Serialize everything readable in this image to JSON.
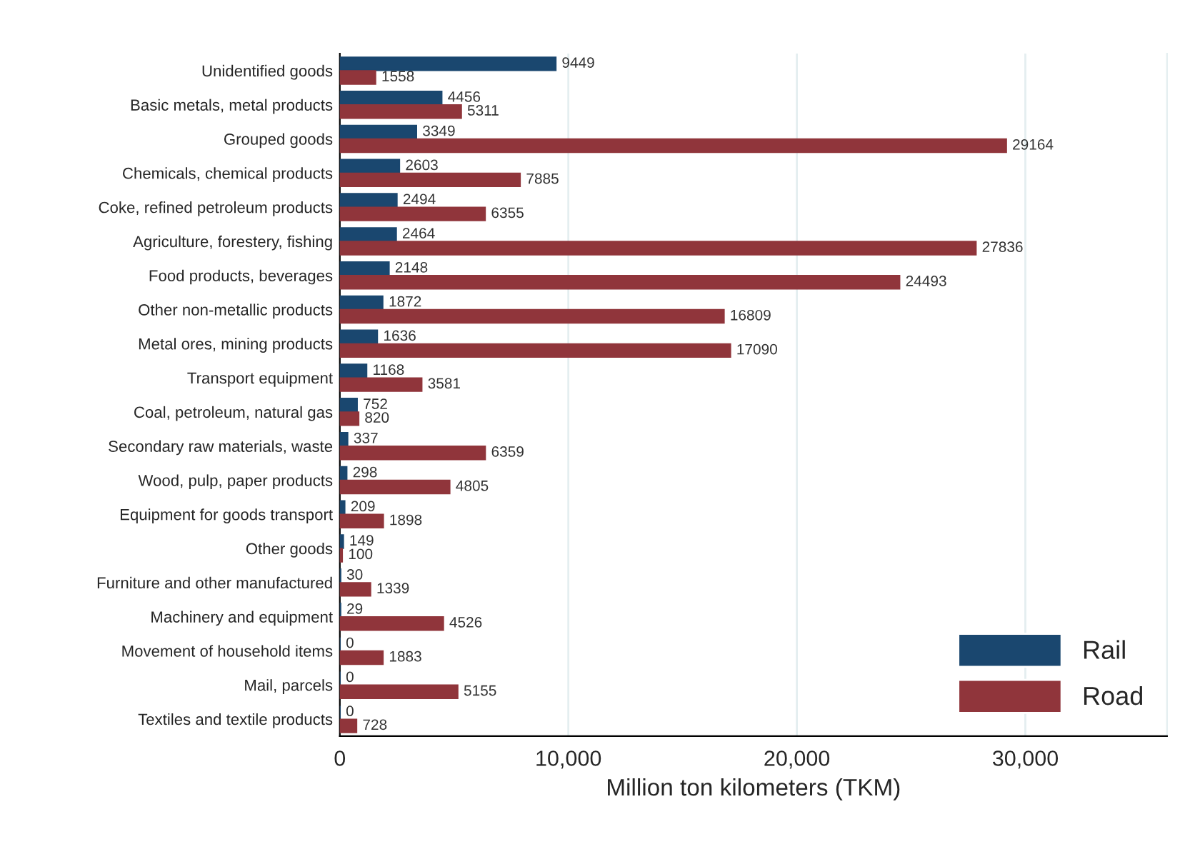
{
  "chart_data": {
    "type": "bar",
    "orientation": "horizontal",
    "xlabel": "Million ton kilometers (TKM)",
    "categories": [
      "Unidentified goods",
      "Basic metals, metal products",
      "Grouped goods",
      "Chemicals, chemical products",
      "Coke, refined petroleum products",
      "Agriculture, forestery, fishing",
      "Food products, beverages",
      "Other non-metallic products",
      "Metal ores, mining products",
      "Transport equipment",
      "Coal, petroleum, natural gas",
      "Secondary raw materials, waste",
      "Wood, pulp, paper products",
      "Equipment for goods transport",
      "Other goods",
      "Furniture and other manufactured",
      "Machinery and equipment",
      "Movement of household items",
      "Mail, parcels",
      "Textiles and textile products"
    ],
    "series": [
      {
        "name": "Rail",
        "color": "#1a476f",
        "values": [
          9449,
          4456,
          3349,
          2603,
          2494,
          2464,
          2148,
          1872,
          1636,
          1168,
          752,
          337,
          298,
          209,
          149,
          30,
          29,
          0,
          0,
          0
        ]
      },
      {
        "name": "Road",
        "color": "#90353b",
        "values": [
          1558,
          5311,
          29164,
          7885,
          6355,
          27836,
          24493,
          16809,
          17090,
          3581,
          820,
          6359,
          4805,
          1898,
          100,
          1339,
          4526,
          1883,
          5155,
          728
        ]
      }
    ],
    "xlim": [
      0,
      36200
    ],
    "xticks": [
      0,
      {
        "value": 10000,
        "label": "10,000"
      },
      {
        "value": 20000,
        "label": "20,000"
      },
      {
        "value": 30000,
        "label": "30,000"
      }
    ],
    "data_labels": true,
    "grid": "x",
    "legend": "bottom right"
  }
}
